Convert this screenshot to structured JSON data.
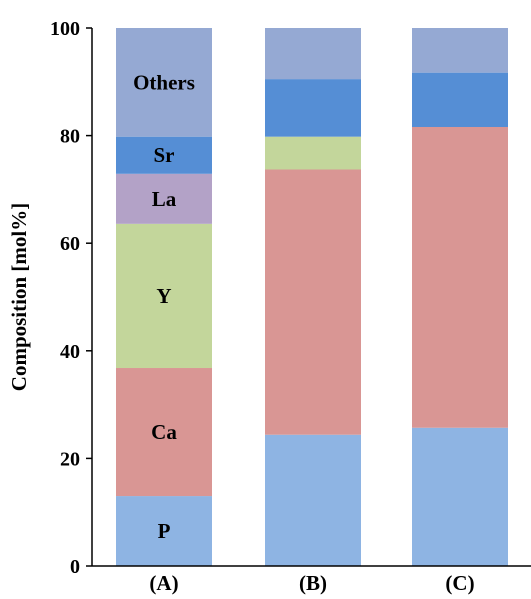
{
  "chart_data": {
    "type": "bar",
    "stacked": true,
    "categories": [
      "(A)",
      "(B)",
      "(C)"
    ],
    "ylabel": "Composition [mol%]",
    "ylim": [
      0,
      100
    ],
    "yticks": [
      "0",
      "20",
      "40",
      "60",
      "80",
      "100"
    ],
    "grid": false,
    "series": [
      {
        "name": "P",
        "color": "#8EB4E3",
        "values": [
          13.0,
          24.4,
          25.7
        ]
      },
      {
        "name": "Ca",
        "color": "#D99694",
        "values": [
          23.8,
          49.3,
          55.9
        ]
      },
      {
        "name": "Y",
        "color": "#C3D69B",
        "values": [
          26.8,
          6.1,
          0.0
        ]
      },
      {
        "name": "La",
        "color": "#B3A2C7",
        "values": [
          9.3,
          0.0,
          0.0
        ]
      },
      {
        "name": "Sr",
        "color": "#558ED5",
        "values": [
          6.9,
          10.7,
          10.1
        ]
      },
      {
        "name": "Others",
        "color": "#95A9D3",
        "values": [
          20.2,
          9.5,
          8.3
        ]
      }
    ]
  }
}
